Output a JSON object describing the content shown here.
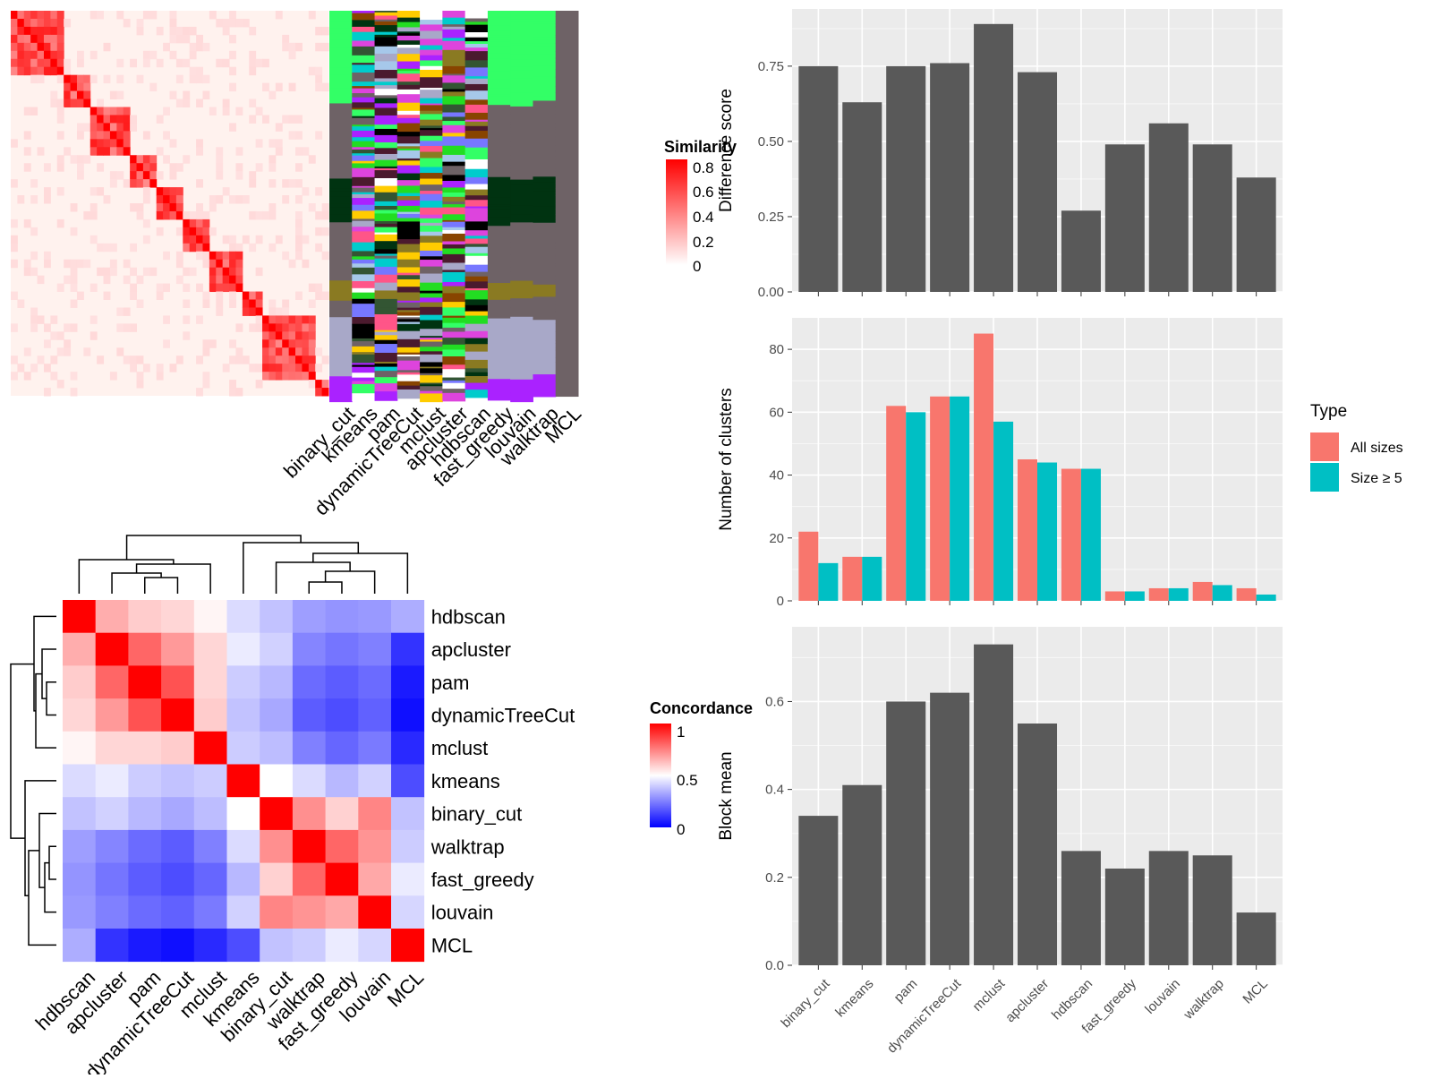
{
  "methods_matrix_order": [
    "binary_cut",
    "kmeans",
    "pam",
    "dynamicTreeCut",
    "mclust",
    "apcluster",
    "hdbscan",
    "fast_greedy",
    "louvain",
    "walktrap",
    "MCL"
  ],
  "similarity_legend": {
    "title": "Similarity",
    "ticks": [
      "0.8",
      "0.6",
      "0.4",
      "0.2",
      "0"
    ]
  },
  "concordance": {
    "legend": {
      "title": "Concordance",
      "ticks": [
        "1",
        "0.5",
        "0"
      ]
    },
    "order": [
      "hdbscan",
      "apcluster",
      "pam",
      "dynamicTreeCut",
      "mclust",
      "kmeans",
      "binary_cut",
      "walktrap",
      "fast_greedy",
      "louvain",
      "MCL"
    ],
    "colors": {
      "low": "#0000ff",
      "mid": "#ffffff",
      "high": "#ff0000"
    },
    "matrix": [
      [
        1.0,
        0.66,
        0.6,
        0.58,
        0.52,
        0.43,
        0.38,
        0.31,
        0.29,
        0.3,
        0.34
      ],
      [
        0.66,
        1.0,
        0.8,
        0.7,
        0.58,
        0.46,
        0.41,
        0.26,
        0.23,
        0.25,
        0.1
      ],
      [
        0.6,
        0.8,
        1.0,
        0.84,
        0.58,
        0.4,
        0.36,
        0.21,
        0.18,
        0.21,
        0.05
      ],
      [
        0.58,
        0.7,
        0.84,
        1.0,
        0.6,
        0.38,
        0.33,
        0.18,
        0.15,
        0.19,
        0.03
      ],
      [
        0.52,
        0.58,
        0.58,
        0.6,
        1.0,
        0.4,
        0.37,
        0.25,
        0.2,
        0.24,
        0.08
      ],
      [
        0.43,
        0.46,
        0.4,
        0.38,
        0.4,
        1.0,
        0.5,
        0.43,
        0.36,
        0.41,
        0.15
      ],
      [
        0.38,
        0.41,
        0.36,
        0.33,
        0.37,
        0.5,
        1.0,
        0.72,
        0.59,
        0.74,
        0.38
      ],
      [
        0.31,
        0.26,
        0.21,
        0.18,
        0.25,
        0.43,
        0.72,
        1.0,
        0.8,
        0.71,
        0.4
      ],
      [
        0.29,
        0.23,
        0.18,
        0.15,
        0.2,
        0.36,
        0.59,
        0.8,
        1.0,
        0.67,
        0.46
      ],
      [
        0.3,
        0.25,
        0.21,
        0.19,
        0.24,
        0.41,
        0.74,
        0.71,
        0.67,
        1.0,
        0.42
      ],
      [
        0.34,
        0.1,
        0.05,
        0.03,
        0.08,
        0.15,
        0.38,
        0.4,
        0.46,
        0.42,
        1.0
      ]
    ]
  },
  "chart_data": [
    {
      "type": "bar",
      "title": "",
      "xlabel": "",
      "ylabel": "Difference score",
      "categories": [
        "binary_cut",
        "kmeans",
        "pam",
        "dynamicTreeCut",
        "mclust",
        "apcluster",
        "hdbscan",
        "fast_greedy",
        "louvain",
        "walktrap",
        "MCL"
      ],
      "values": [
        0.75,
        0.63,
        0.75,
        0.76,
        0.89,
        0.73,
        0.27,
        0.49,
        0.56,
        0.49,
        0.38
      ],
      "ylim": [
        0,
        0.94
      ],
      "yticks": [
        0,
        0.25,
        0.5,
        0.75
      ],
      "ytick_labels": [
        "0.00",
        "0.25",
        "0.50",
        "0.75"
      ],
      "grid": true
    },
    {
      "type": "bar",
      "title": "",
      "xlabel": "",
      "ylabel": "Number of clusters",
      "categories": [
        "binary_cut",
        "kmeans",
        "pam",
        "dynamicTreeCut",
        "mclust",
        "apcluster",
        "hdbscan",
        "fast_greedy",
        "louvain",
        "walktrap",
        "MCL"
      ],
      "series": [
        {
          "name": "All sizes",
          "color": "#f8766d",
          "values": [
            22,
            14,
            62,
            65,
            85,
            45,
            42,
            3,
            4,
            6,
            4
          ]
        },
        {
          "name": "Size ≥ 5",
          "color": "#00bfc4",
          "values": [
            12,
            14,
            60,
            65,
            57,
            44,
            42,
            3,
            4,
            5,
            2
          ]
        }
      ],
      "legend_title": "Type",
      "legend_position": "right",
      "ylim": [
        0,
        90
      ],
      "yticks": [
        0,
        20,
        40,
        60,
        80
      ],
      "ytick_labels": [
        "0",
        "20",
        "40",
        "60",
        "80"
      ],
      "grid": true
    },
    {
      "type": "bar",
      "title": "",
      "xlabel": "",
      "ylabel": "Block mean",
      "categories": [
        "binary_cut",
        "kmeans",
        "pam",
        "dynamicTreeCut",
        "mclust",
        "apcluster",
        "hdbscan",
        "fast_greedy",
        "louvain",
        "walktrap",
        "MCL"
      ],
      "values": [
        0.34,
        0.41,
        0.6,
        0.62,
        0.73,
        0.55,
        0.26,
        0.22,
        0.26,
        0.25,
        0.12
      ],
      "ylim": [
        0,
        0.77
      ],
      "yticks": [
        0,
        0.2,
        0.4,
        0.6
      ],
      "ytick_labels": [
        "0.0",
        "0.2",
        "0.4",
        "0.6"
      ],
      "grid": true
    }
  ]
}
